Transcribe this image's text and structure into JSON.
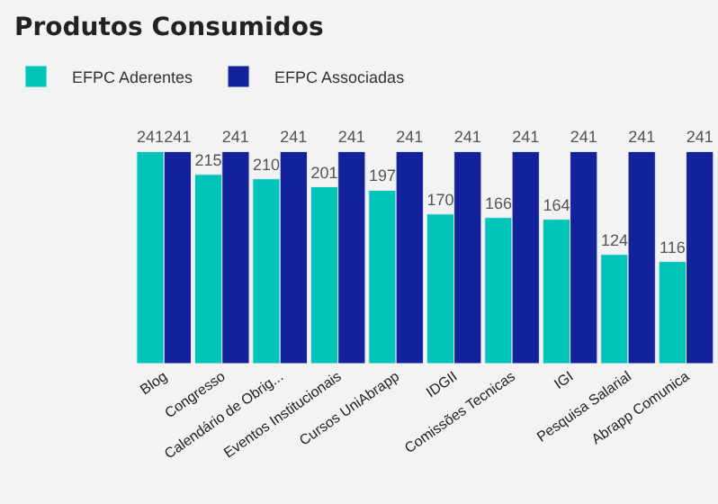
{
  "chart_data": {
    "type": "bar",
    "title": "Produtos Consumidos",
    "categories": [
      "Blog",
      "Congresso",
      "Calendário de Obrig...",
      "Eventos Institucionais",
      "Cursos UniAbrapp",
      "IDGII",
      "Comissões Tecnicas",
      "IGI",
      "Pesquisa Salarial",
      "Abrapp Comunica"
    ],
    "series": [
      {
        "name": "EFPC Aderentes",
        "color": "#00c4b8",
        "values": [
          241,
          215,
          210,
          201,
          197,
          170,
          166,
          164,
          124,
          116
        ]
      },
      {
        "name": "EFPC Associadas",
        "color": "#13229a",
        "values": [
          241,
          241,
          241,
          241,
          241,
          241,
          241,
          241,
          241,
          241
        ]
      }
    ],
    "data_labels": true,
    "legend": "top left"
  }
}
